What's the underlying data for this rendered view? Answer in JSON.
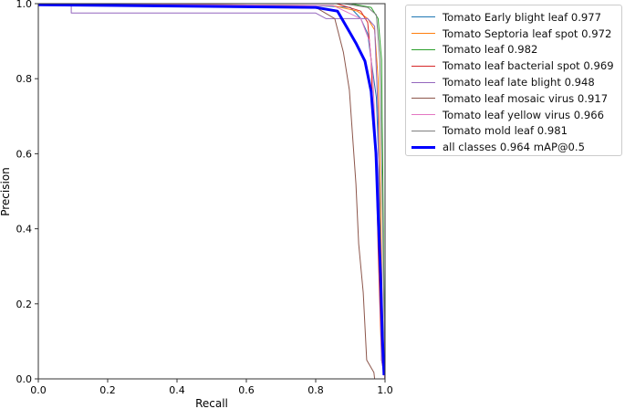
{
  "chart_data": {
    "type": "line",
    "title": "",
    "xlabel": "Recall",
    "ylabel": "Precision",
    "xlim": [
      0,
      1
    ],
    "ylim": [
      0,
      1
    ],
    "xticks": [
      "0.0",
      "0.2",
      "0.4",
      "0.6",
      "0.8",
      "1.0"
    ],
    "yticks": [
      "0.0",
      "0.2",
      "0.4",
      "0.6",
      "0.8",
      "1.0"
    ],
    "legend_position": "outside-top-right",
    "series": [
      {
        "name": "Tomato Early blight leaf 0.977",
        "color": "#1f77b4",
        "width": 1,
        "points": [
          [
            0,
            1
          ],
          [
            0.8,
            0.995
          ],
          [
            0.9,
            0.99
          ],
          [
            0.93,
            0.96
          ],
          [
            0.95,
            0.92
          ],
          [
            0.96,
            0.85
          ],
          [
            0.975,
            0.75
          ],
          [
            0.985,
            0.5
          ],
          [
            0.99,
            0.2
          ],
          [
            0.995,
            0.1
          ],
          [
            1,
            0
          ]
        ]
      },
      {
        "name": "Tomato Septoria leaf spot 0.972",
        "color": "#ff7f0e",
        "width": 1,
        "points": [
          [
            0,
            1
          ],
          [
            0.85,
            0.995
          ],
          [
            0.92,
            0.98
          ],
          [
            0.95,
            0.96
          ],
          [
            0.97,
            0.93
          ],
          [
            0.98,
            0.8
          ],
          [
            0.985,
            0.6
          ],
          [
            0.99,
            0.3
          ],
          [
            0.995,
            0.05
          ],
          [
            1,
            0
          ]
        ]
      },
      {
        "name": "Tomato leaf 0.982",
        "color": "#2ca02c",
        "width": 1,
        "points": [
          [
            0,
            1
          ],
          [
            0.9,
            1
          ],
          [
            0.96,
            0.99
          ],
          [
            0.98,
            0.96
          ],
          [
            0.99,
            0.85
          ],
          [
            0.993,
            0.6
          ],
          [
            0.996,
            0.3
          ],
          [
            1,
            0
          ]
        ]
      },
      {
        "name": "Tomato leaf bacterial spot 0.969",
        "color": "#d62728",
        "width": 1,
        "points": [
          [
            0,
            1
          ],
          [
            0.86,
            1
          ],
          [
            0.93,
            0.98
          ],
          [
            0.95,
            0.95
          ],
          [
            0.96,
            0.85
          ],
          [
            0.965,
            0.7
          ],
          [
            0.975,
            0.55
          ],
          [
            0.98,
            0.35
          ],
          [
            0.985,
            0.2
          ],
          [
            0.99,
            0.05
          ],
          [
            1,
            0
          ]
        ]
      },
      {
        "name": "Tomato leaf late blight 0.948",
        "color": "#9467bd",
        "width": 1,
        "points": [
          [
            0,
            1
          ],
          [
            0.095,
            1
          ],
          [
            0.095,
            0.975
          ],
          [
            0.8,
            0.975
          ],
          [
            0.83,
            0.96
          ],
          [
            0.95,
            0.96
          ],
          [
            0.97,
            0.94
          ],
          [
            0.98,
            0.7
          ],
          [
            0.985,
            0.3
          ],
          [
            0.99,
            0.05
          ],
          [
            1,
            0
          ]
        ]
      },
      {
        "name": "Tomato leaf mosaic virus 0.917",
        "color": "#8c564b",
        "width": 1,
        "points": [
          [
            0,
            1
          ],
          [
            0.8,
            0.99
          ],
          [
            0.855,
            0.96
          ],
          [
            0.88,
            0.87
          ],
          [
            0.897,
            0.77
          ],
          [
            0.916,
            0.52
          ],
          [
            0.924,
            0.36
          ],
          [
            0.937,
            0.23
          ],
          [
            0.947,
            0.05
          ],
          [
            0.968,
            0.017
          ],
          [
            0.97,
            0
          ],
          [
            1,
            0
          ]
        ]
      },
      {
        "name": "Tomato leaf yellow virus 0.966",
        "color": "#e377c2",
        "width": 1,
        "points": [
          [
            0,
            1
          ],
          [
            0.85,
            0.995
          ],
          [
            0.93,
            0.96
          ],
          [
            0.955,
            0.9
          ],
          [
            0.965,
            0.8
          ],
          [
            0.975,
            0.6
          ],
          [
            0.985,
            0.3
          ],
          [
            0.99,
            0.1
          ],
          [
            1,
            0
          ]
        ]
      },
      {
        "name": "Tomato mold leaf 0.981",
        "color": "#7f7f7f",
        "width": 1,
        "points": [
          [
            0,
            1
          ],
          [
            0.88,
            1
          ],
          [
            0.95,
            0.99
          ],
          [
            0.975,
            0.97
          ],
          [
            0.985,
            0.85
          ],
          [
            0.99,
            0.6
          ],
          [
            0.995,
            0.3
          ],
          [
            1,
            0
          ]
        ]
      },
      {
        "name": "all classes 0.964 mAP@0.5",
        "color": "#0000ff",
        "width": 3,
        "points": [
          [
            0,
            0.997
          ],
          [
            0.8,
            0.99
          ],
          [
            0.863,
            0.98
          ],
          [
            0.916,
            0.895
          ],
          [
            0.942,
            0.847
          ],
          [
            0.96,
            0.766
          ],
          [
            0.974,
            0.6
          ],
          [
            0.98,
            0.44
          ],
          [
            0.987,
            0.28
          ],
          [
            0.992,
            0.117
          ],
          [
            0.997,
            0.01
          ]
        ]
      }
    ]
  }
}
